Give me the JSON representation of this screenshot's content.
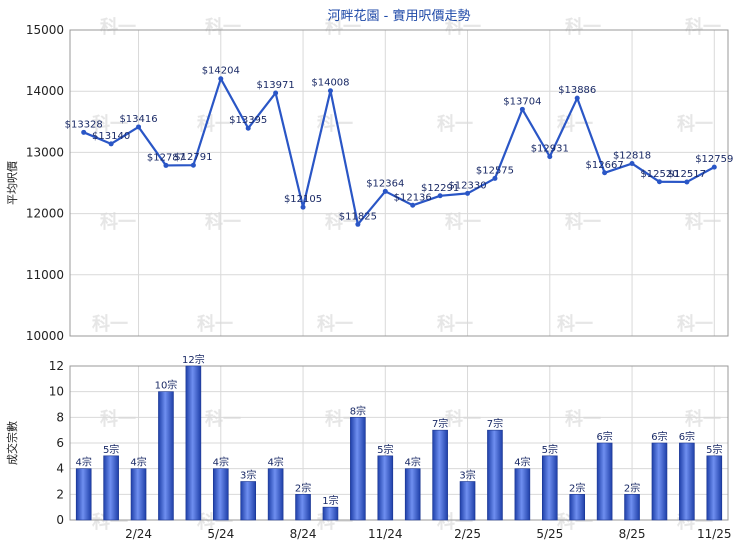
{
  "chart_data": [
    {
      "type": "line",
      "title": "河畔花園 - 實用呎價走勢",
      "ylabel": "平均呎價",
      "ylim": [
        10000,
        15000
      ],
      "yticks": [
        10000,
        11000,
        12000,
        13000,
        14000,
        15000
      ],
      "color": "#2a56c6",
      "grid": true,
      "values": [
        13328,
        13140,
        13416,
        12787,
        12791,
        14204,
        13395,
        13971,
        12105,
        14008,
        11825,
        12364,
        12136,
        12291,
        12330,
        12575,
        13704,
        12931,
        13886,
        12667,
        12818,
        12520,
        12517,
        12759
      ],
      "labels": [
        "$13328",
        "$13140",
        "$13416",
        "$12787",
        "$12791",
        "$14204",
        "$13395",
        "$13971",
        "$12105",
        "$14008",
        "$11825",
        "$12364",
        "$12136",
        "$12291",
        "$12330",
        "$12575",
        "$13704",
        "$12931",
        "$13886",
        "$12667",
        "$12818",
        "$12520",
        "$12517",
        "$12759"
      ]
    },
    {
      "type": "bar",
      "ylabel": "成交宗數",
      "ylim": [
        0,
        12
      ],
      "yticks": [
        0,
        2,
        4,
        6,
        8,
        10,
        12
      ],
      "color": "#3355cc",
      "grid": true,
      "values": [
        4,
        5,
        4,
        10,
        12,
        4,
        3,
        4,
        2,
        1,
        8,
        5,
        4,
        7,
        3,
        7,
        4,
        5,
        2,
        6,
        2,
        6,
        6,
        5
      ],
      "labels": [
        "4宗",
        "5宗",
        "4宗",
        "10宗",
        "12宗",
        "4宗",
        "3宗",
        "4宗",
        "2宗",
        "1宗",
        "8宗",
        "5宗",
        "4宗",
        "7宗",
        "3宗",
        "7宗",
        "4宗",
        "5宗",
        "2宗",
        "6宗",
        "2宗",
        "6宗",
        "6宗",
        "5宗"
      ],
      "xticks": [
        {
          "index": 2,
          "label": "2/24"
        },
        {
          "index": 5,
          "label": "5/24"
        },
        {
          "index": 8,
          "label": "8/24"
        },
        {
          "index": 11,
          "label": "11/24"
        },
        {
          "index": 14,
          "label": "2/25"
        },
        {
          "index": 17,
          "label": "5/25"
        },
        {
          "index": 20,
          "label": "8/25"
        },
        {
          "index": 23,
          "label": "11/25"
        }
      ]
    }
  ],
  "watermark": "科一"
}
